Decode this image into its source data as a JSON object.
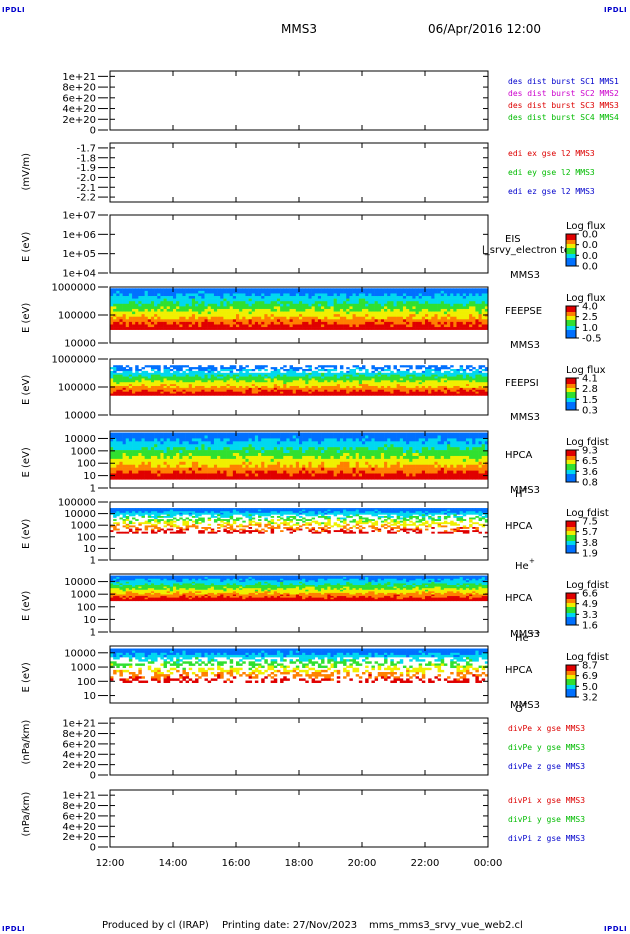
{
  "header": {
    "corner_tl": "IPDLI",
    "corner_tr": "IPDLI",
    "corner_bl": "IPDLI",
    "corner_br": "IPDLI",
    "mission": "MMS3",
    "datetime": "06/Apr/2016 12:00"
  },
  "footer": {
    "produced_by": "Produced by cl (IRAP)",
    "printing_date": "Printing date: 27/Nov/2023",
    "script_name": "mms_mms3_srvy_vue_web2.cl"
  },
  "time_axis": {
    "start": "12:00",
    "end": "00:00",
    "tick_labels": [
      "12:00",
      "14:00",
      "16:00",
      "18:00",
      "20:00",
      "22:00",
      "00:00"
    ]
  },
  "colors": {
    "blue": "#0000cc",
    "magenta": "#cc00cc",
    "red": "#dd0000",
    "green": "#00bb00"
  },
  "chart_data": [
    {
      "id": "des-dist",
      "type": "line",
      "ylabel": "",
      "ytick_labels": [
        "1e+21",
        "8e+20",
        "6e+20",
        "4e+20",
        "2e+20",
        "0"
      ],
      "ylim": [
        0,
        1.1e+21
      ],
      "zero_dashed_line": true,
      "legend": [
        {
          "text": "des dist burst SC1 MMS1",
          "color": "#0000cc"
        },
        {
          "text": "des dist burst SC2 MMS2",
          "color": "#cc00cc"
        },
        {
          "text": "des dist burst SC3 MMS3",
          "color": "#dd0000"
        },
        {
          "text": "des dist burst SC4 MMS4",
          "color": "#00bb00"
        }
      ],
      "series": []
    },
    {
      "id": "edi-e",
      "type": "line",
      "ylabel": "(mV/m)",
      "ytick_labels": [
        "-1.7",
        "-1.8",
        "-1.9",
        "-2.0",
        "-2.1",
        "-2.2"
      ],
      "ylim": [
        -2.25,
        -1.65
      ],
      "legend": [
        {
          "text": "edi ex gse l2 MMS3",
          "color": "#dd0000"
        },
        {
          "text": "edi ey gse l2 MMS3",
          "color": "#00bb00"
        },
        {
          "text": "edi ez gse l2 MMS3",
          "color": "#0000cc"
        }
      ],
      "series": []
    },
    {
      "id": "eis",
      "type": "heatmap",
      "ylabel": "E (eV)",
      "ytick_labels": [
        "1e+07",
        "1e+06",
        "1e+05",
        "1e+04"
      ],
      "ylim": [
        10000.0,
        10000000.0
      ],
      "instrument": "EIS",
      "extra_label": "l_srvy_electron to",
      "spacecraft": "MMS3",
      "colorbar_title": "Log flux",
      "colorbar_ticks": [
        "0.0",
        "0.0",
        "0.0",
        "0.0"
      ],
      "coverage": []
    },
    {
      "id": "feeps-e",
      "type": "heatmap",
      "ylabel": "E (eV)",
      "ytick_labels": [
        "1000000",
        "100000",
        "10000"
      ],
      "ylim": [
        10000.0,
        1000000.0
      ],
      "instrument": "FEEPSE",
      "spacecraft": "MMS3",
      "colorbar_title": "Log flux",
      "colorbar_ticks": [
        "4.0",
        "2.5",
        "1.0",
        "-0.5"
      ],
      "coverage": [
        {
          "start_hour": 12.0,
          "end_hour": 24.0,
          "e_min": 30000,
          "e_max": 900000
        }
      ]
    },
    {
      "id": "feeps-i",
      "type": "heatmap",
      "ylabel": "E (eV)",
      "ytick_labels": [
        "1000000",
        "100000",
        "10000"
      ],
      "ylim": [
        10000.0,
        1000000.0
      ],
      "instrument": "FEEPSI",
      "spacecraft": "MMS3",
      "colorbar_title": "Log flux",
      "colorbar_ticks": [
        "4.1",
        "2.8",
        "1.5",
        "0.3"
      ],
      "coverage": [
        {
          "start_hour": 12.0,
          "end_hour": 24.0,
          "e_min": 50000,
          "e_max": 600000
        }
      ]
    },
    {
      "id": "hpca-h",
      "type": "heatmap",
      "ylabel": "E (eV)",
      "ytick_labels": [
        "10000",
        "1000",
        "100",
        "10",
        "1"
      ],
      "ylim": [
        1,
        40000
      ],
      "instrument": "HPCA",
      "spacecraft": "MMS3",
      "species": "H",
      "species_sup": "+",
      "colorbar_title": "Log fdist",
      "colorbar_ticks": [
        "9.3",
        "6.5",
        "3.6",
        "0.8"
      ],
      "coverage": [
        {
          "start_hour": 12.0,
          "end_hour": 24.0,
          "e_min": 5,
          "e_max": 30000
        }
      ]
    },
    {
      "id": "hpca-he",
      "type": "heatmap",
      "ylabel": "E (eV)",
      "ytick_labels": [
        "100000",
        "10000",
        "1000",
        "100",
        "10",
        "1"
      ],
      "ylim": [
        1,
        100000
      ],
      "instrument": "HPCA",
      "spacecraft": "",
      "species": "He",
      "species_sup": "+",
      "colorbar_title": "Log fdist",
      "colorbar_ticks": [
        "7.5",
        "5.7",
        "3.8",
        "1.9"
      ],
      "coverage": [
        {
          "start_hour": 12.0,
          "end_hour": 24.0,
          "e_min": 200,
          "e_max": 30000
        }
      ]
    },
    {
      "id": "hpca-hepp",
      "type": "heatmap",
      "ylabel": "E (eV)",
      "ytick_labels": [
        "10000",
        "1000",
        "100",
        "10",
        "1"
      ],
      "ylim": [
        1,
        40000
      ],
      "instrument": "HPCA",
      "spacecraft": "MMS3",
      "species": "He",
      "species_sup": "++",
      "colorbar_title": "Log fdist",
      "colorbar_ticks": [
        "6.6",
        "4.9",
        "3.3",
        "1.6"
      ],
      "coverage": [
        {
          "start_hour": 12.0,
          "end_hour": 24.0,
          "e_min": 300,
          "e_max": 30000
        }
      ]
    },
    {
      "id": "hpca-o",
      "type": "heatmap",
      "ylabel": "E (eV)",
      "ytick_labels": [
        "10000",
        "1000",
        "100",
        "10"
      ],
      "ylim": [
        3,
        30000
      ],
      "instrument": "HPCA",
      "spacecraft": "MMS3",
      "species": "O",
      "species_sup": "+",
      "colorbar_title": "Log fdist",
      "colorbar_ticks": [
        "8.7",
        "6.9",
        "5.0",
        "3.2"
      ],
      "coverage": [
        {
          "start_hour": 12.0,
          "end_hour": 24.0,
          "e_min": 80,
          "e_max": 20000
        }
      ]
    },
    {
      "id": "divpe",
      "type": "line",
      "ylabel": "(nPa/km)",
      "ytick_labels": [
        "1e+21",
        "8e+20",
        "6e+20",
        "4e+20",
        "2e+20",
        "0"
      ],
      "ylim": [
        0,
        1.1e+21
      ],
      "zero_dashed_line": true,
      "legend": [
        {
          "text": "divPe x gse MMS3",
          "color": "#dd0000"
        },
        {
          "text": "divPe y gse MMS3",
          "color": "#00bb00"
        },
        {
          "text": "divPe z gse MMS3",
          "color": "#0000cc"
        }
      ],
      "series": []
    },
    {
      "id": "divpi",
      "type": "line",
      "ylabel": "(nPa/km)",
      "ytick_labels": [
        "1e+21",
        "8e+20",
        "6e+20",
        "4e+20",
        "2e+20",
        "0"
      ],
      "ylim": [
        0,
        1.1e+21
      ],
      "zero_dashed_line": true,
      "legend": [
        {
          "text": "divPi x gse MMS3",
          "color": "#dd0000"
        },
        {
          "text": "divPi y gse MMS3",
          "color": "#00bb00"
        },
        {
          "text": "divPi z gse MMS3",
          "color": "#0000cc"
        }
      ],
      "series": []
    }
  ]
}
